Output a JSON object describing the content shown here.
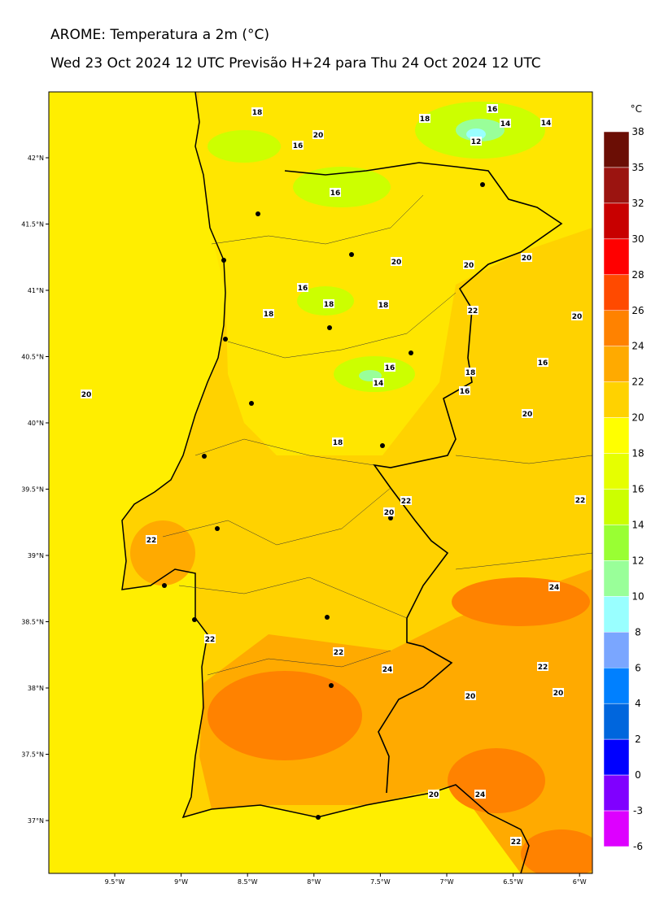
{
  "header": {
    "title": "AROME: Temperatura a 2m (°C)",
    "subtitle": "Wed 23 Oct 2024 12 UTC Previsão H+24 para Thu 24 Oct 2024 12 UTC"
  },
  "map": {
    "lat_labels": [
      "42°N",
      "41.5°N",
      "41°N",
      "40.5°N",
      "40°N",
      "39.5°N",
      "39°N",
      "38.5°N",
      "38°N",
      "37.5°N",
      "37°N"
    ],
    "lon_labels": [
      "9.5°W",
      "9°W",
      "8.5°W",
      "8°W",
      "7.5°W",
      "7°W",
      "6.5°W",
      "6°W"
    ],
    "contour_labels": [
      18,
      20,
      18,
      16,
      14,
      14,
      12,
      16,
      16,
      20,
      20,
      20,
      16,
      18,
      18,
      18,
      22,
      20,
      16,
      14,
      16,
      18,
      16,
      20,
      20,
      18,
      22,
      20,
      22,
      22,
      24,
      22,
      22,
      24,
      22,
      20,
      20,
      20,
      24,
      22
    ]
  },
  "colorbar": {
    "unit": "°C",
    "ticks": [
      38,
      35,
      32,
      30,
      28,
      26,
      24,
      22,
      20,
      18,
      16,
      14,
      12,
      10,
      8,
      6,
      4,
      2,
      0,
      -3,
      -6
    ],
    "colors": [
      "#6b0e05",
      "#9b1410",
      "#c80000",
      "#ff0000",
      "#ff4a00",
      "#ff8200",
      "#ffaa00",
      "#ffd200",
      "#ffff00",
      "#e6ff00",
      "#ccff00",
      "#99ff33",
      "#99ff99",
      "#99ffff",
      "#7aa6ff",
      "#0080ff",
      "#0066dd",
      "#0000ff",
      "#8000ff",
      "#dd00ff"
    ]
  }
}
